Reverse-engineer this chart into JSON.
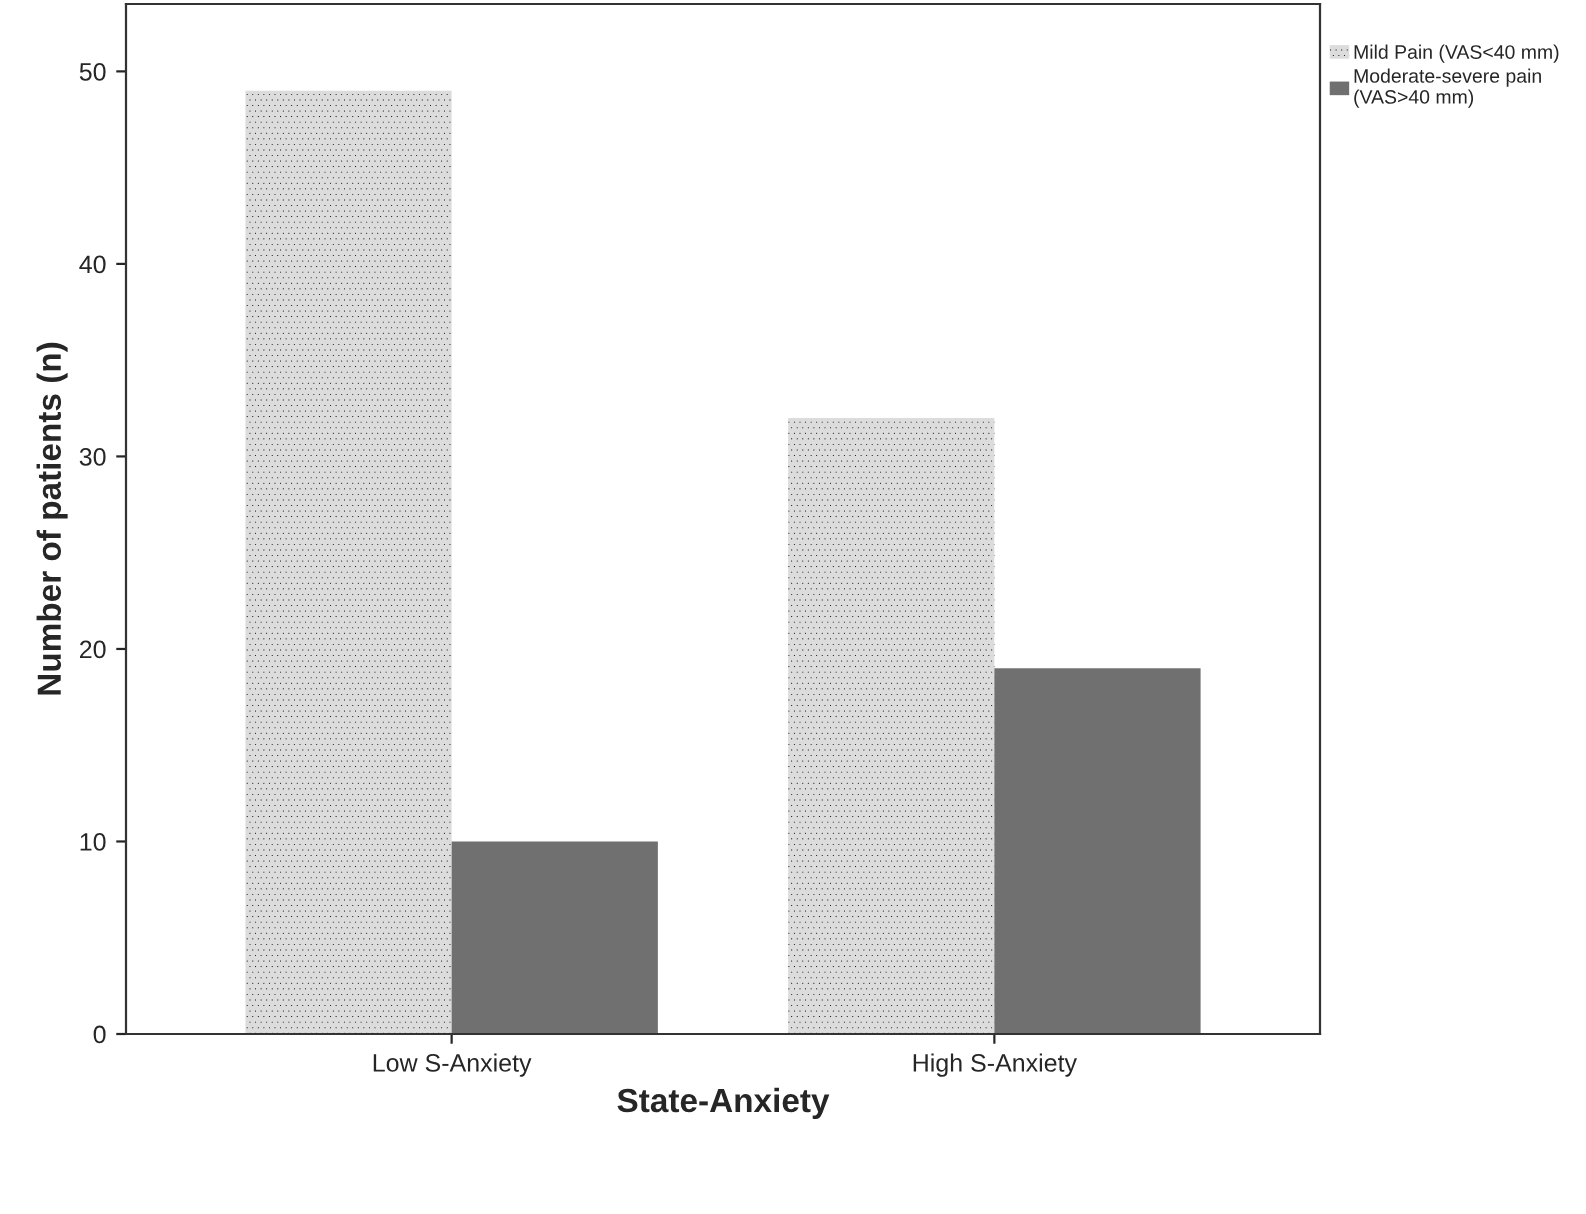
{
  "chart_data": {
    "type": "bar",
    "xlabel": "State-Anxiety",
    "ylabel": "Number of patients (n)",
    "categories": [
      "Low S-Anxiety",
      "High S-Anxiety"
    ],
    "series": [
      {
        "name": "Mild Pain (VAS<40 mm)",
        "color": "#dcdcdc",
        "values": [
          49,
          32
        ]
      },
      {
        "name": "Moderate-severe pain\n(VAS>40 mm)",
        "color": "#707070",
        "values": [
          10,
          19
        ]
      }
    ],
    "ylim": [
      0,
      53.5
    ],
    "yticks": [
      0,
      10,
      20,
      30,
      40,
      50
    ],
    "grid": false,
    "legend": "top right"
  }
}
